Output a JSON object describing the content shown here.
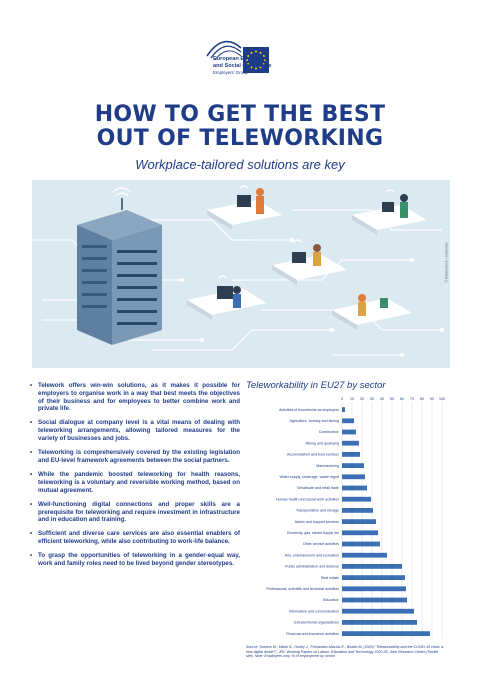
{
  "header": {
    "org_name": "European Economic\nand Social Committee",
    "group": "Employers' Group"
  },
  "title_line1": "HOW TO GET THE BEST",
  "title_line2": "OUT OF TELEWORKING",
  "subtitle": "Workplace-tailored solutions are key",
  "illustration_credit": "© Adobestock / ssstocker",
  "bullets": [
    "Telework offers win-win solutions, as it makes it possible for employers to organise work in a way that best meets the objectives of their business and for employees to better combine work and private life.",
    "Social dialogue at company level is a vital means of dealing with teleworking arrangements, allowing tailored measures for the variety of businesses and jobs.",
    "Teleworking is comprehensively covered by the existing legislation and EU-level framework agreements between the social partners.",
    "While the pandemic boosted teleworking for health reasons, teleworking is a voluntary and reversible working method, based on mutual agreement.",
    "Well-functioning digital connections and proper skills are a prerequisite for teleworking and require investment in infrastructure and in education and training.",
    "Sufficient and diverse care services are also essential enablers of efficient teleworking, while also contributing to work-life balance.",
    "To grasp the opportunities of teleworking in a gender-equal way, work and family roles need to be lived beyond gender stereotypes."
  ],
  "chart_data": {
    "type": "bar",
    "orientation": "horizontal",
    "title": "Teleworkability in EU27 by sector",
    "xlim": [
      0,
      100
    ],
    "xticks": [
      "0",
      "10",
      "20",
      "30",
      "40",
      "50",
      "60",
      "70",
      "80",
      "90",
      "100"
    ],
    "grid": true,
    "bar_color": "#3d6fb6",
    "categories": [
      "Activities of households as employers",
      "Agriculture, forestry and fishing",
      "Construction",
      "Mining and quarrying",
      "Accomodation and food services",
      "Manufacturing",
      "Water supply, sewerage, waste mgmt",
      "Wholesale and retail trade",
      "Human health and social work activities",
      "Transportation and storage",
      "Admin and support services",
      "Electricity, gas, steam supply etc",
      "Other service activities",
      "Arts, entertainment and recreation",
      "Public administration and defense",
      "Real estate",
      "Professional, scientific and technical activities",
      "Education",
      "Information and communication",
      "Extraterritorial organisations",
      "Financial and insurance activities"
    ],
    "values": [
      3,
      12,
      14,
      17,
      18,
      22,
      23,
      25,
      29,
      31,
      34,
      36,
      38,
      45,
      60,
      63,
      64,
      65,
      72,
      75,
      88
    ]
  },
  "source": "Source: Sostero M., Milasi S., Hurley J., Fernández-Macías E., Bisello M. (2020) \"Teleworkability and the COVID-19 crisis: a new digital divide?\", JRC Working Papers on Labour, Education and Technology 2020-05, Joint Research Centre (Seville site). Note: Employees only. % of employment by sector."
}
